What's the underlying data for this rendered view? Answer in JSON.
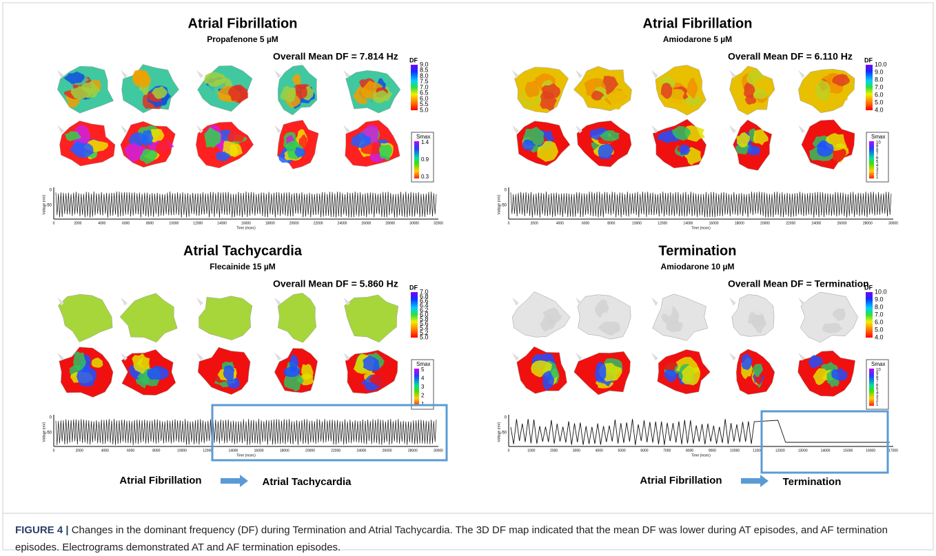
{
  "figure": {
    "panels": [
      {
        "title": "Atrial Fibrillation",
        "subtitle": "Propafenone 5 µM",
        "mean_df": "Overall Mean DF = 7.814 Hz",
        "df_colorbar": {
          "title": "DF",
          "ticks": [
            "9.0",
            "8.5",
            "8.0",
            "7.5",
            "7.0",
            "6.5",
            "6.0",
            "5.5",
            "5.0"
          ]
        },
        "smax_colorbar": {
          "title": "Smax",
          "ticks": [
            "1.4",
            "0.9",
            "0.3"
          ]
        },
        "trace": {
          "y_label": "Voltage (mV)",
          "x_label": "Time (msec)",
          "y_ticks": [
            "0",
            "-50"
          ],
          "x_ticks": [
            "0",
            "2000",
            "4000",
            "6000",
            "8000",
            "10000",
            "12000",
            "14000",
            "16000",
            "18000",
            "20000",
            "22000",
            "24000",
            "26000",
            "28000",
            "30000",
            "32000"
          ]
        }
      },
      {
        "title": "Atrial Fibrillation",
        "subtitle": "Amiodarone 5 µM",
        "mean_df": "Overall Mean DF = 6.110 Hz",
        "df_colorbar": {
          "title": "DF",
          "ticks": [
            "10.0",
            "9.0",
            "8.0",
            "7.0",
            "6.0",
            "5.0",
            "4.0"
          ]
        },
        "smax_colorbar": {
          "title": "Smax",
          "ticks": [
            "10",
            "9",
            "8",
            "7",
            "6",
            "5",
            "4",
            "3",
            "2",
            "1"
          ]
        },
        "trace": {
          "y_label": "Voltage (mV)",
          "x_label": "Time (msec)",
          "y_ticks": [
            "0",
            "-50"
          ],
          "x_ticks": [
            "0",
            "2000",
            "4000",
            "6000",
            "8000",
            "10000",
            "12000",
            "14000",
            "16000",
            "18000",
            "20000",
            "22000",
            "24000",
            "26000",
            "28000",
            "30000"
          ]
        }
      },
      {
        "title": "Atrial Tachycardia",
        "subtitle": "Flecainide 15 µM",
        "mean_df": "Overall Mean DF = 5.860 Hz",
        "df_colorbar": {
          "title": "DF",
          "ticks": [
            "7.0",
            "6.8",
            "6.6",
            "6.4",
            "6.2",
            "6.0",
            "5.8",
            "5.6",
            "5.4",
            "5.2",
            "5.0"
          ]
        },
        "smax_colorbar": {
          "title": "Smax",
          "ticks": [
            "5",
            "4",
            "3",
            "2",
            "1"
          ]
        },
        "trace": {
          "y_label": "Voltage (mV)",
          "x_label": "Time (msec)",
          "y_ticks": [
            "0",
            "-50"
          ],
          "x_ticks": [
            "0",
            "2000",
            "4000",
            "6000",
            "8000",
            "10000",
            "12000",
            "14000",
            "16000",
            "18000",
            "20000",
            "22000",
            "24000",
            "26000",
            "28000",
            "30000"
          ]
        },
        "transition": {
          "from": "Atrial Fibrillation",
          "to": "Atrial Tachycardia"
        }
      },
      {
        "title": "Termination",
        "subtitle": "Amiodarone 10 µM",
        "mean_df": "Overall Mean DF = Termination",
        "df_colorbar": {
          "title": "DF",
          "ticks": [
            "10.0",
            "9.0",
            "8.0",
            "7.0",
            "6.0",
            "5.0",
            "4.0"
          ]
        },
        "smax_colorbar": {
          "title": "Smax",
          "ticks": [
            "10",
            "9",
            "8",
            "7",
            "6",
            "5",
            "4",
            "3",
            "2",
            "1"
          ]
        },
        "trace": {
          "y_label": "Voltage (mV)",
          "x_label": "Time (msec)",
          "y_ticks": [
            "0",
            "-50"
          ],
          "x_ticks": [
            "0",
            "1000",
            "2000",
            "3000",
            "4000",
            "5000",
            "6000",
            "7000",
            "8000",
            "9000",
            "10000",
            "11000",
            "12000",
            "13000",
            "14000",
            "15000",
            "16000",
            "17000"
          ]
        },
        "transition": {
          "from": "Atrial Fibrillation",
          "to": "Termination"
        }
      }
    ],
    "caption": {
      "label": "FIGURE 4 |",
      "text": "Changes in the dominant frequency (DF) during Termination and Atrial Tachycardia. The 3D DF map indicated that the mean DF was lower during AT episodes, and AF termination episodes. Electrograms demonstrated AT and AF termination episodes."
    }
  }
}
